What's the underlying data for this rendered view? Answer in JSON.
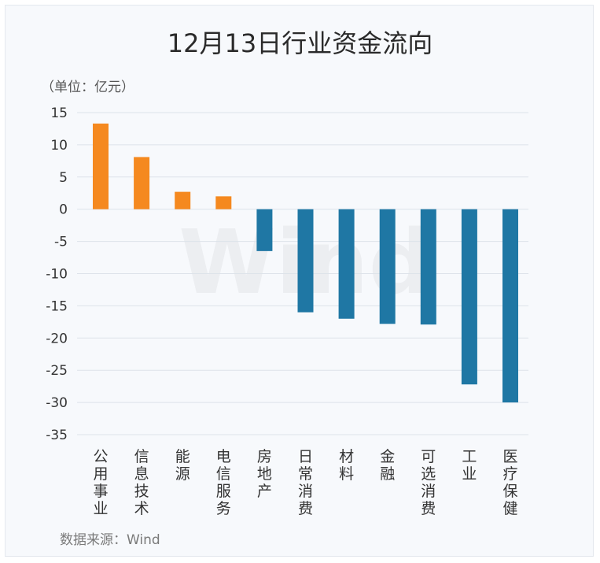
{
  "chart_data": {
    "type": "bar",
    "title": "12月13日行业资金流向",
    "unit_label": "（单位：亿元）",
    "source": "数据来源：Wind",
    "watermark": "Wind",
    "categories": [
      "公用事业",
      "信息技术",
      "能源",
      "电信服务",
      "房地产",
      "日常消费",
      "材料",
      "金融",
      "可选消费",
      "工业",
      "医疗保健"
    ],
    "values": [
      13.3,
      8.1,
      2.7,
      2.0,
      -6.5,
      -16.0,
      -17.0,
      -17.8,
      -17.9,
      -27.2,
      -30.0
    ],
    "ylim": [
      -35,
      15
    ],
    "yticks": [
      15,
      10,
      5,
      0,
      -5,
      -10,
      -15,
      -20,
      -25,
      -30,
      -35
    ],
    "ytick_labels": [
      "15",
      "10",
      "5",
      "0",
      "-5",
      "-10",
      "-15",
      "-20",
      "-25",
      "-30",
      "-35"
    ],
    "grid": true,
    "colors": {
      "positive": "#f5891f",
      "negative": "#1f77a4"
    }
  }
}
